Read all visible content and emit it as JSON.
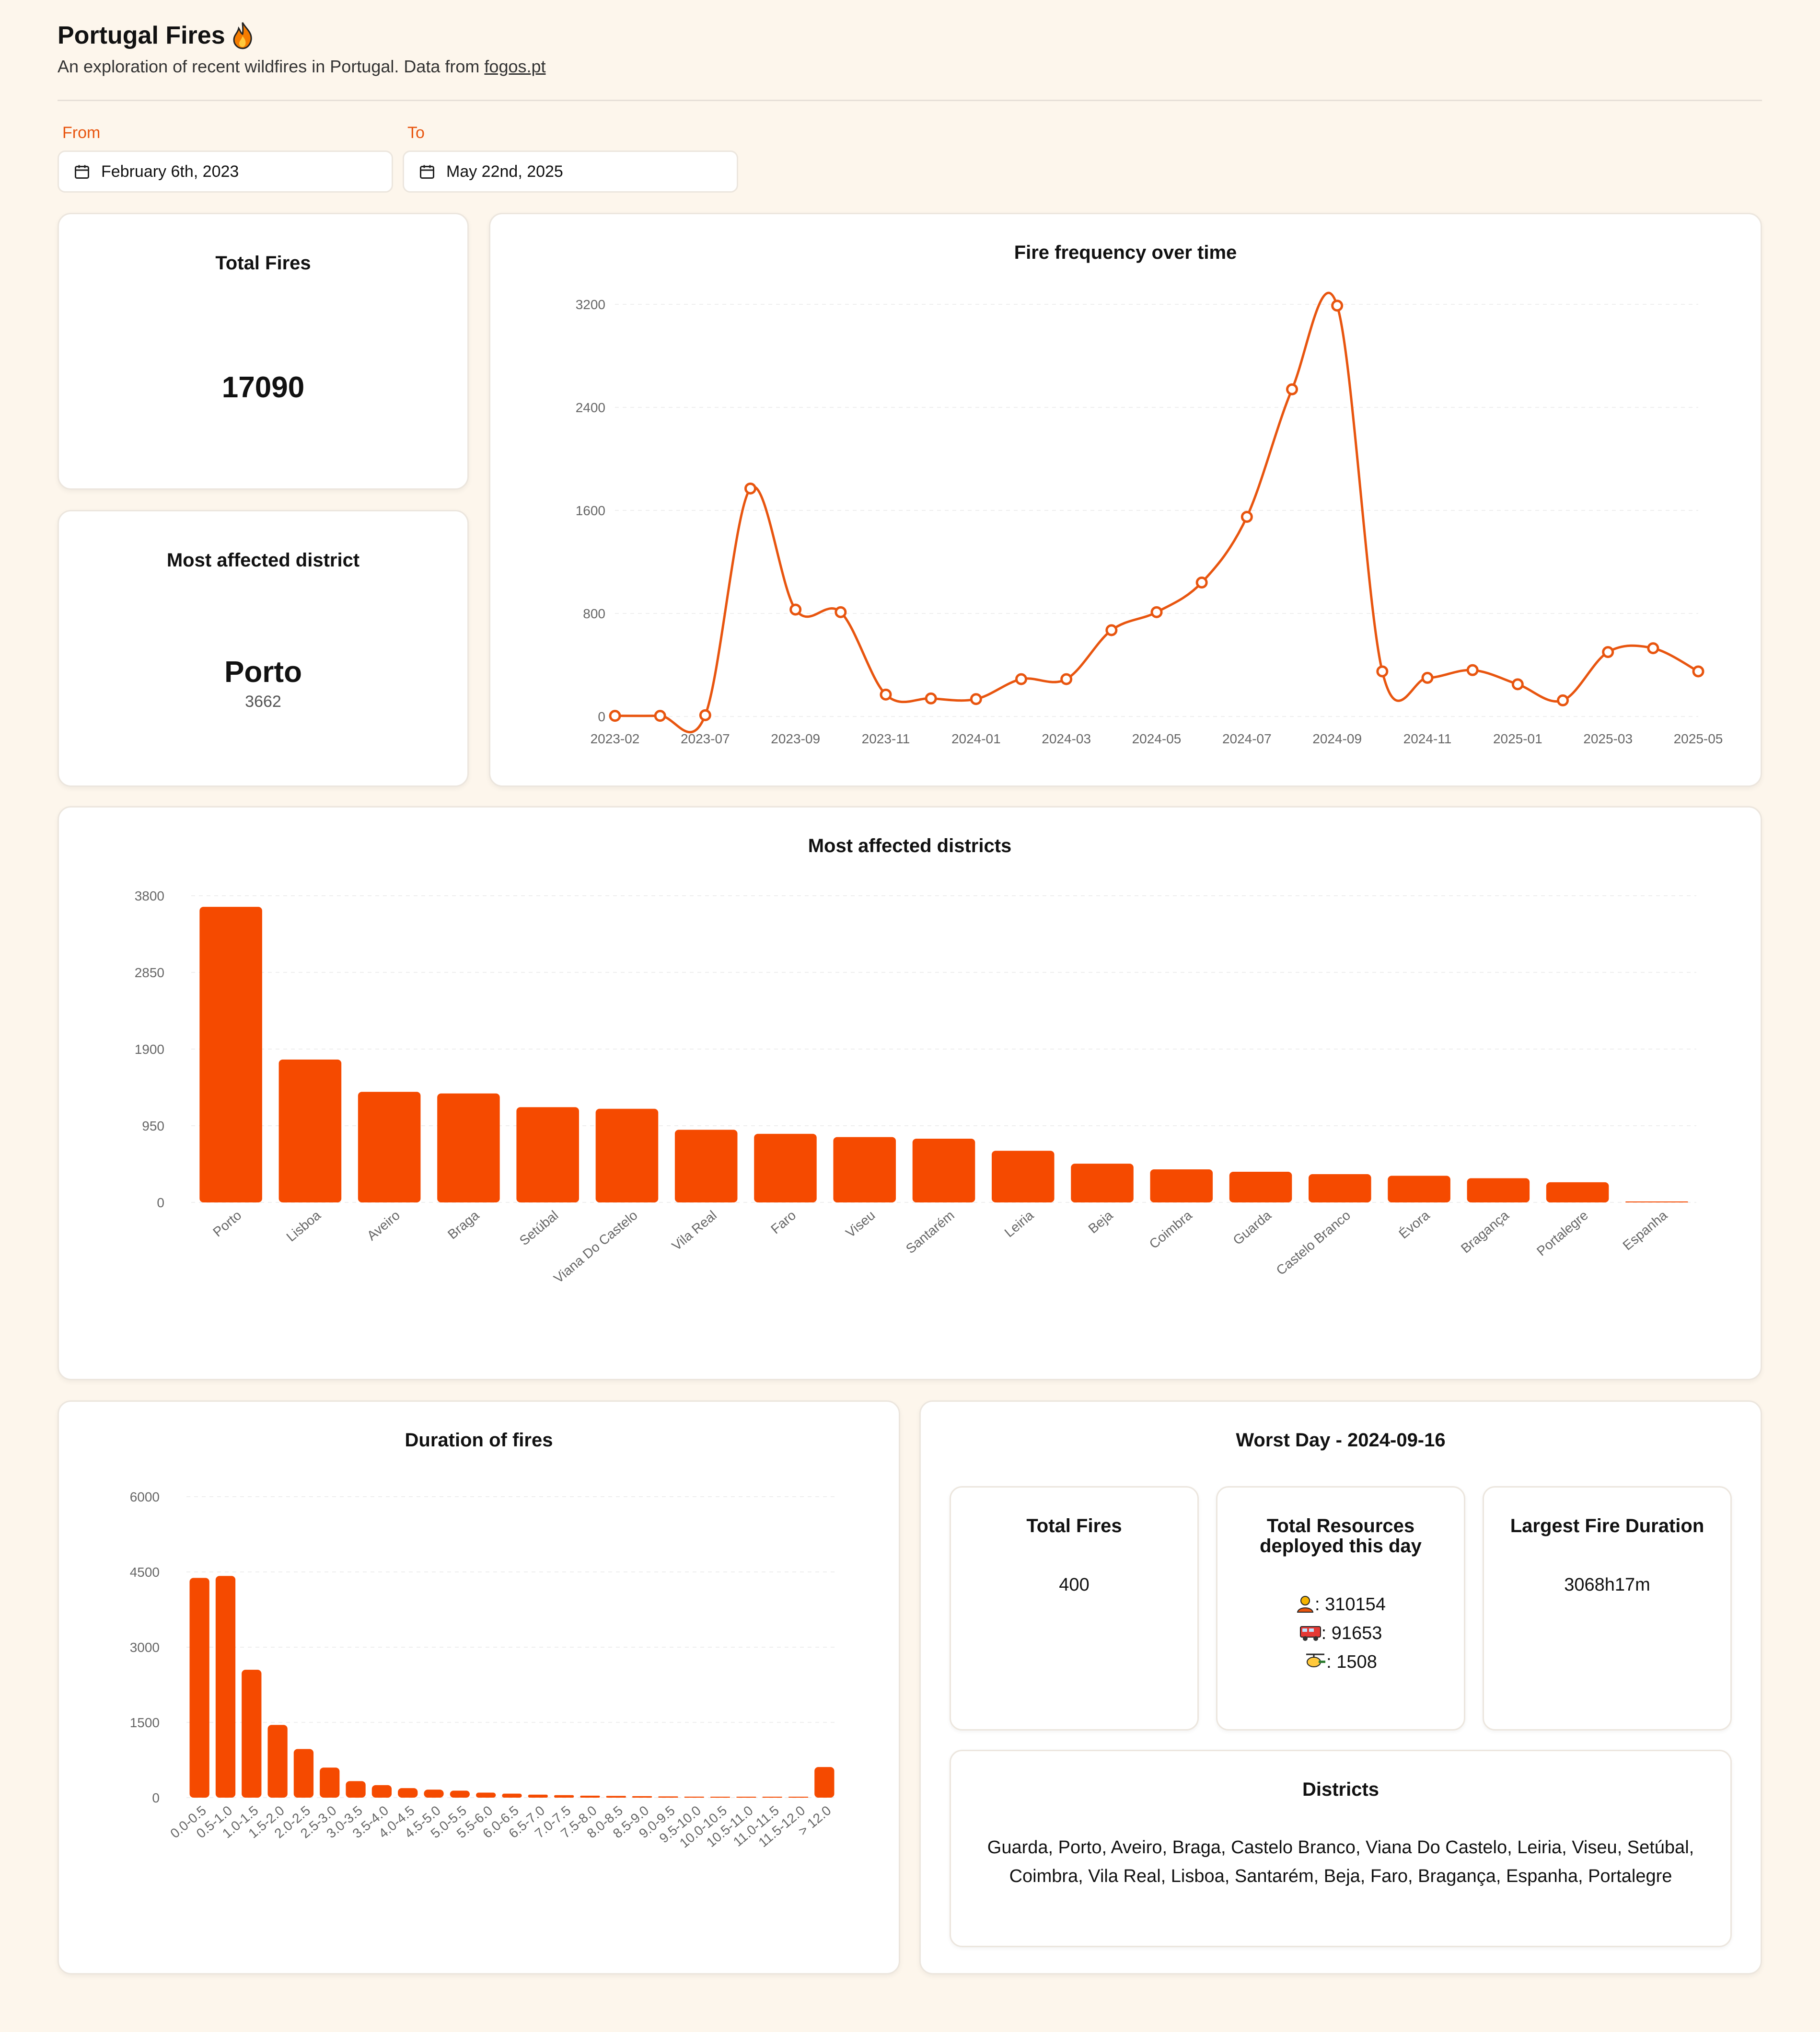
{
  "header": {
    "title": "Portugal Fires",
    "subtitle_prefix": "An exploration of recent wildfires in Portugal. Data from ",
    "source_link": "fogos.pt",
    "title_icon": "fire-icon"
  },
  "filters": {
    "from_label": "From",
    "from_value": "February 6th, 2023",
    "to_label": "To",
    "to_value": "May 22nd, 2025"
  },
  "total_fires": {
    "title": "Total Fires",
    "value": "17090"
  },
  "most_affected": {
    "title": "Most affected district",
    "name": "Porto",
    "count": "3662"
  },
  "worst_day": {
    "title": "Worst Day - 2024-09-16",
    "total_fires_title": "Total Fires",
    "total_fires_value": "400",
    "resources_title_1": "Total Resources",
    "resources_title_2": "deployed this day",
    "resources": [
      {
        "icon": "firefighter-icon",
        "value": ": 310154"
      },
      {
        "icon": "fire-truck-icon",
        "value": ": 91653"
      },
      {
        "icon": "helicopter-icon",
        "value": ": 1508"
      }
    ],
    "largest_title": "Largest Fire Duration",
    "largest_value": "3068h17m",
    "districts_title": "Districts",
    "districts_line1": "Guarda, Porto, Aveiro, Braga, Castelo Branco, Viana Do Castelo, Leiria, Viseu, Setúbal,",
    "districts_line2": "Coimbra, Vila Real, Lisboa, Santarém, Beja, Faro, Bragança, Espanha, Portalegre"
  },
  "colors": {
    "accent": "#f54a00",
    "line": "#e8550f",
    "background": "#fdf6ec",
    "card": "#ffffff"
  },
  "chart_data": [
    {
      "type": "line",
      "title": "Fire frequency over time",
      "x": [
        "2023-02",
        "2023-06",
        "2023-07",
        "2023-08",
        "2023-09",
        "2023-10",
        "2023-11",
        "2023-12",
        "2024-01",
        "2024-02",
        "2024-03",
        "2024-04",
        "2024-05",
        "2024-06",
        "2024-07",
        "2024-08",
        "2024-09",
        "2024-10",
        "2024-11",
        "2024-12",
        "2025-01",
        "2025-02",
        "2025-03",
        "2025-04",
        "2025-05"
      ],
      "x_tick_labels": [
        "2023-02",
        "2023-07",
        "2023-09",
        "2023-11",
        "2024-01",
        "2024-03",
        "2024-05",
        "2024-07",
        "2024-09",
        "2024-11",
        "2025-01",
        "2025-03",
        "2025-05"
      ],
      "values": [
        5,
        5,
        10,
        1770,
        830,
        810,
        170,
        140,
        135,
        290,
        290,
        670,
        810,
        1040,
        1550,
        2540,
        3190,
        350,
        300,
        360,
        250,
        125,
        500,
        530,
        350
      ],
      "yticks": [
        0,
        800,
        1600,
        2400,
        3200
      ],
      "ylim": [
        0,
        3200
      ],
      "grid": true
    },
    {
      "type": "bar",
      "title": "Most affected districts",
      "categories": [
        "Porto",
        "Lisboa",
        "Aveiro",
        "Braga",
        "Setúbal",
        "Viana Do Castelo",
        "Vila Real",
        "Faro",
        "Viseu",
        "Santarém",
        "Leiria",
        "Beja",
        "Coimbra",
        "Guarda",
        "Castelo Branco",
        "Évora",
        "Bragança",
        "Portalegre",
        "Espanha"
      ],
      "values": [
        3662,
        1770,
        1370,
        1350,
        1180,
        1160,
        900,
        850,
        810,
        790,
        640,
        480,
        410,
        380,
        350,
        330,
        300,
        250,
        10
      ],
      "yticks": [
        0,
        950,
        1900,
        2850,
        3800
      ],
      "ylim": [
        0,
        3800
      ],
      "grid": true
    },
    {
      "type": "bar",
      "title": "Duration of fires",
      "categories": [
        "0.0-0.5",
        "0.5-1.0",
        "1.0-1.5",
        "1.5-2.0",
        "2.0-2.5",
        "2.5-3.0",
        "3.0-3.5",
        "3.5-4.0",
        "4.0-4.5",
        "4.5-5.0",
        "5.0-5.5",
        "5.5-6.0",
        "6.0-6.5",
        "6.5-7.0",
        "7.0-7.5",
        "7.5-8.0",
        "8.0-8.5",
        "8.5-9.0",
        "9.0-9.5",
        "9.5-10.0",
        "10.0-10.5",
        "10.5-11.0",
        "11.0-11.5",
        "11.5-12.0",
        "> 12.0"
      ],
      "values": [
        4380,
        4420,
        2550,
        1450,
        970,
        600,
        330,
        250,
        190,
        160,
        140,
        100,
        80,
        60,
        50,
        40,
        35,
        30,
        25,
        20,
        18,
        15,
        12,
        10,
        610
      ],
      "yticks": [
        0,
        1500,
        3000,
        4500,
        6000
      ],
      "ylim": [
        0,
        6000
      ],
      "grid": true
    }
  ]
}
